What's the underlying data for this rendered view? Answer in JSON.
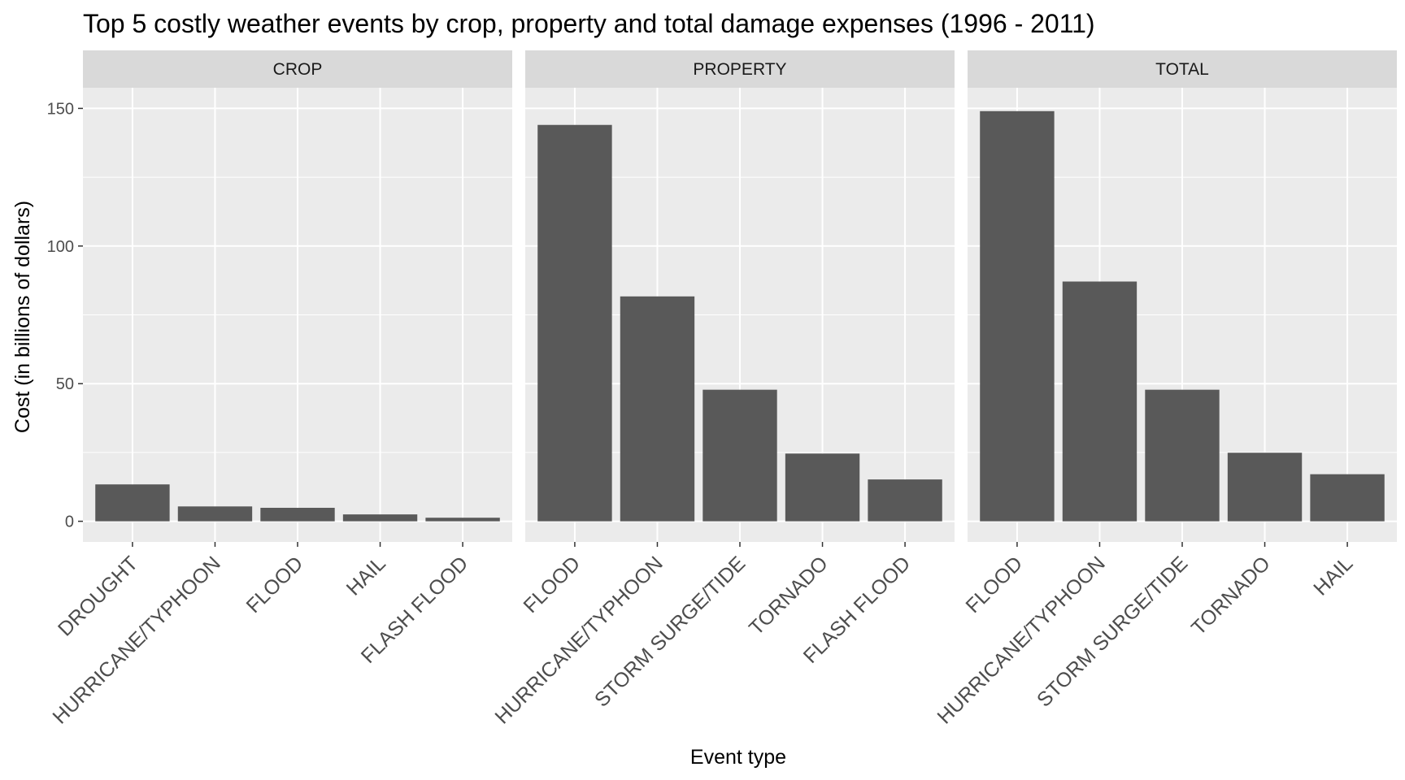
{
  "chart_data": {
    "type": "bar",
    "title": "Top 5 costly weather events by crop, property and total damage expenses (1996 - 2011)",
    "xlabel": "Event type",
    "ylabel": "Cost (in billions of dollars)",
    "ylim": [
      -7.5,
      157.5
    ],
    "yticks": [
      0,
      50,
      100,
      150
    ],
    "grid": true,
    "colors": {
      "bar": "#595959",
      "panel": "#ebebeb",
      "strip": "#d9d9d9",
      "grid": "#ffffff"
    },
    "facets": [
      {
        "name": "CROP",
        "categories": [
          "DROUGHT",
          "HURRICANE/TYPHOON",
          "FLOOD",
          "HAIL",
          "FLASH FLOOD"
        ],
        "values": [
          13.4,
          5.4,
          4.9,
          2.5,
          1.3
        ]
      },
      {
        "name": "PROPERTY",
        "categories": [
          "FLOOD",
          "HURRICANE/TYPHOON",
          "STORM SURGE/TIDE",
          "TORNADO",
          "FLASH FLOOD"
        ],
        "values": [
          144.0,
          81.7,
          47.8,
          24.6,
          15.2
        ]
      },
      {
        "name": "TOTAL",
        "categories": [
          "FLOOD",
          "HURRICANE/TYPHOON",
          "STORM SURGE/TIDE",
          "TORNADO",
          "HAIL"
        ],
        "values": [
          149.0,
          87.1,
          47.8,
          24.9,
          17.1
        ]
      }
    ]
  }
}
